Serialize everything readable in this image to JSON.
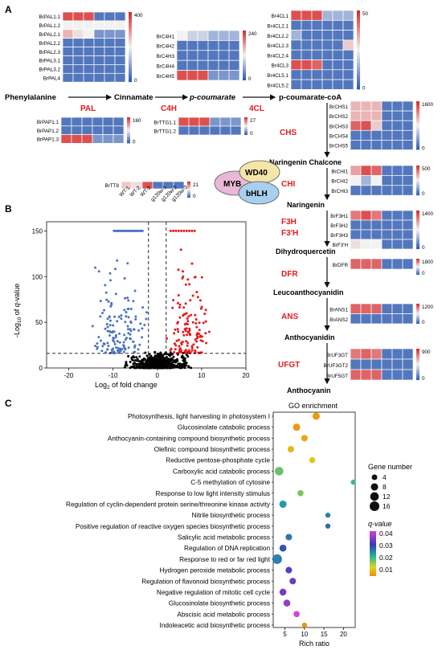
{
  "panels": {
    "a": "A",
    "b": "B",
    "c": "C"
  },
  "colors": {
    "high": "#d62728",
    "mid": "#f2f2f2",
    "low": "#2b58b0",
    "enzyme": "#e31a1c",
    "volcano_up": "#e41a1c",
    "volcano_down": "#4a74c0",
    "volcano_ns": "#000000"
  },
  "pathway": {
    "main_steps": [
      "Phenylalanine",
      "Cinnamate",
      "p-coumarate",
      "p-coumarate-coA"
    ],
    "main_enzymes": [
      "PAL",
      "C4H",
      "4CL"
    ],
    "vertical_steps": [
      "Naringenin Chalcone",
      "Naringenin",
      "Dihydroquercetin",
      "Leucoanthocyanidin",
      "Anthocyanidin",
      "Anthocyanin"
    ],
    "vertical_enzymes": [
      "CHS",
      "CHI",
      "F3H",
      "F3'H",
      "DFR",
      "ANS",
      "UFGT"
    ],
    "mbw": [
      "MYB",
      "WD40",
      "bHLH"
    ],
    "sample_labels": [
      "WT-1",
      "WT-2",
      "WT-3",
      "g120w-1",
      "g120w-2",
      "g120w-3"
    ]
  },
  "heatmaps": [
    {
      "id": "pal",
      "genes": [
        "BrPAL1.1",
        "BrPAL1.2",
        "BrPAL2.1",
        "BrPAL2.2",
        "BrPAL2.3",
        "BrPAL3.1",
        "BrPAL3.2",
        "BrPAL4"
      ],
      "scale_max": "400",
      "scale_min": "0",
      "values": [
        [
          0.9,
          0.9,
          0.9,
          0.1,
          0.1,
          0.1
        ],
        [
          0.5,
          0.5,
          0.5,
          0.5,
          0.5,
          0.5
        ],
        [
          0.65,
          0.55,
          0.5,
          0.2,
          0.2,
          0.2
        ],
        [
          0.1,
          0.1,
          0.1,
          0.1,
          0.1,
          0.1
        ],
        [
          0.1,
          0.1,
          0.1,
          0.1,
          0.1,
          0.1
        ],
        [
          0.1,
          0.1,
          0.1,
          0.1,
          0.1,
          0.1
        ],
        [
          0.1,
          0.1,
          0.1,
          0.1,
          0.1,
          0.1
        ],
        [
          0.1,
          0.1,
          0.1,
          0.1,
          0.1,
          0.1
        ]
      ]
    },
    {
      "id": "c4h",
      "genes": [
        "BrC4H1",
        "BrC4H2",
        "BrC4H3",
        "BrC4H4",
        "BrC4H5"
      ],
      "scale_max": "240",
      "scale_min": "0",
      "values": [
        [
          0.5,
          0.4,
          0.4,
          0.3,
          0.3,
          0.3
        ],
        [
          0.1,
          0.1,
          0.1,
          0.1,
          0.1,
          0.1
        ],
        [
          0.1,
          0.1,
          0.1,
          0.1,
          0.1,
          0.1
        ],
        [
          0.1,
          0.1,
          0.1,
          0.1,
          0.1,
          0.1
        ],
        [
          0.9,
          0.9,
          0.9,
          0.2,
          0.2,
          0.2
        ]
      ]
    },
    {
      "id": "4cl",
      "genes": [
        "Br4CL1",
        "Br4CL2.1",
        "Br4CL2.2",
        "Br4CL2.3",
        "Br4CL2.4",
        "Br4CL3",
        "Br4CL5.1",
        "Br4CL5.2"
      ],
      "scale_max": "50",
      "scale_min": "0",
      "values": [
        [
          0.9,
          0.9,
          0.9,
          0.3,
          0.3,
          0.3
        ],
        [
          0.1,
          0.1,
          0.1,
          0.1,
          0.1,
          0.1
        ],
        [
          0.3,
          0.1,
          0.1,
          0.1,
          0.1,
          0.1
        ],
        [
          0.1,
          0.1,
          0.1,
          0.1,
          0.1,
          0.6
        ],
        [
          0.1,
          0.1,
          0.1,
          0.1,
          0.1,
          0.1
        ],
        [
          0.9,
          0.9,
          0.85,
          0.1,
          0.1,
          0.1
        ],
        [
          0.1,
          0.1,
          0.1,
          0.1,
          0.1,
          0.1
        ],
        [
          0.1,
          0.1,
          0.1,
          0.1,
          0.1,
          0.1
        ]
      ]
    },
    {
      "id": "pap",
      "genes": [
        "BrPAP1.1",
        "BrPAP1.2",
        "BrPAP1.3"
      ],
      "scale_max": "160",
      "scale_min": "0",
      "values": [
        [
          0.1,
          0.1,
          0.1,
          0.1,
          0.1,
          0.1
        ],
        [
          0.1,
          0.1,
          0.1,
          0.1,
          0.1,
          0.1
        ],
        [
          0.9,
          0.9,
          0.9,
          0.2,
          0.2,
          0.2
        ]
      ]
    },
    {
      "id": "ttg1",
      "genes": [
        "BrTTG1.1",
        "BrTTG1.2"
      ],
      "scale_max": "27",
      "scale_min": "0",
      "values": [
        [
          0.9,
          0.9,
          0.9,
          0.2,
          0.2,
          0.2
        ],
        [
          0.1,
          0.1,
          0.1,
          0.1,
          0.1,
          0.1
        ]
      ]
    },
    {
      "id": "tt8",
      "genes": [
        "BrTT8"
      ],
      "scale_max": "21",
      "scale_min": "0",
      "values": [
        [
          0.6,
          0.55,
          0.9,
          0.1,
          0.1,
          0.1
        ]
      ]
    },
    {
      "id": "chs",
      "genes": [
        "BrCHS1",
        "BrCHS2",
        "BrCHS3",
        "BrCHS4",
        "BrCHS5"
      ],
      "scale_max": "1600",
      "scale_min": "0",
      "values": [
        [
          0.65,
          0.65,
          0.65,
          0.1,
          0.1,
          0.1
        ],
        [
          0.65,
          0.65,
          0.65,
          0.1,
          0.1,
          0.1
        ],
        [
          0.85,
          0.9,
          0.6,
          0.1,
          0.1,
          0.1
        ],
        [
          0.1,
          0.1,
          0.1,
          0.1,
          0.1,
          0.1
        ],
        [
          0.1,
          0.1,
          0.1,
          0.1,
          0.1,
          0.1
        ]
      ]
    },
    {
      "id": "chi",
      "genes": [
        "BrCHI1",
        "BrCHI2",
        "BrCHI3"
      ],
      "scale_max": "500",
      "scale_min": "0",
      "values": [
        [
          0.7,
          0.9,
          0.85,
          0.1,
          0.1,
          0.1
        ],
        [
          0.5,
          0.3,
          0.5,
          0.1,
          0.1,
          0.1
        ],
        [
          0.1,
          0.1,
          0.1,
          0.1,
          0.1,
          0.1
        ]
      ]
    },
    {
      "id": "f3h",
      "genes": [
        "BrF3H1",
        "BrF3H2",
        "BrF3H3",
        "BrF3'H"
      ],
      "scale_max": "1400",
      "scale_min": "0",
      "values": [
        [
          0.8,
          0.9,
          0.8,
          0.1,
          0.1,
          0.1
        ],
        [
          0.1,
          0.1,
          0.1,
          0.1,
          0.1,
          0.1
        ],
        [
          0.1,
          0.1,
          0.1,
          0.1,
          0.1,
          0.1
        ],
        [
          0.55,
          0.5,
          0.5,
          0.1,
          0.1,
          0.1
        ]
      ]
    },
    {
      "id": "dfr",
      "genes": [
        "BrDFR"
      ],
      "scale_max": "1800",
      "scale_min": "0",
      "values": [
        [
          0.85,
          0.85,
          0.85,
          0.1,
          0.1,
          0.1
        ]
      ]
    },
    {
      "id": "ans",
      "genes": [
        "BrANS1",
        "BrANS2"
      ],
      "scale_max": "1200",
      "scale_min": "0",
      "values": [
        [
          0.85,
          0.85,
          0.85,
          0.1,
          0.1,
          0.1
        ],
        [
          0.1,
          0.1,
          0.1,
          0.1,
          0.1,
          0.1
        ]
      ]
    },
    {
      "id": "ufgt",
      "genes": [
        "BrUF3GT",
        "BrUF3GT2",
        "BrUF5GT"
      ],
      "scale_max": "900",
      "scale_min": "0",
      "values": [
        [
          0.8,
          0.85,
          0.8,
          0.1,
          0.1,
          0.1
        ],
        [
          0.1,
          0.1,
          0.1,
          0.1,
          0.1,
          0.1
        ],
        [
          0.85,
          0.85,
          0.85,
          0.1,
          0.1,
          0.1
        ]
      ]
    }
  ],
  "chart_data": [
    {
      "type": "scatter",
      "name": "volcano",
      "xlabel": "Log2 of fold change",
      "ylabel": "-Log10 of q-value",
      "xlim": [
        -25,
        20
      ],
      "ylim": [
        0,
        160
      ],
      "xticks": [
        "-20",
        "-10",
        "0",
        "10",
        "20"
      ],
      "yticks": [
        "0",
        "50",
        "100",
        "150"
      ],
      "thresholds": {
        "x": [
          -2,
          2
        ],
        "y": 16
      },
      "groups": [
        "down",
        "up",
        "ns"
      ]
    },
    {
      "type": "scatter",
      "name": "GO enrichment",
      "title": "GO enrichment",
      "xlabel": "Rich ratio",
      "xticks": [
        "5",
        "10",
        "15",
        "20"
      ],
      "xlim": [
        2,
        23
      ],
      "terms": [
        {
          "term": "Photosynthesis, light harvesting in photosystem I",
          "x": 13,
          "size": 8,
          "q": 0.002
        },
        {
          "term": "Glucosinolate catabolic process",
          "x": 8,
          "size": 8,
          "q": 0.002
        },
        {
          "term": "Anthocyanin-containing compound biosynthetic process",
          "x": 10,
          "size": 6,
          "q": 0.004
        },
        {
          "term": "Olefinic compound biosynthetic process",
          "x": 6.5,
          "size": 6,
          "q": 0.006
        },
        {
          "term": "Reductive pentose-phosphate cycle",
          "x": 12,
          "size": 5,
          "q": 0.008
        },
        {
          "term": "Carboxylic acid catabolic process",
          "x": 3.5,
          "size": 12,
          "q": 0.016
        },
        {
          "term": "C-5 methylation of cytosine",
          "x": 22.5,
          "size": 3,
          "q": 0.018
        },
        {
          "term": "Response to low light intensity stimulus",
          "x": 9,
          "size": 5,
          "q": 0.015
        },
        {
          "term": "Regulation of cyclin-dependent protein serine/threonine kinase activity",
          "x": 4.5,
          "size": 8,
          "q": 0.022
        },
        {
          "term": "Nitrile biosynthetic process",
          "x": 16,
          "size": 3,
          "q": 0.024
        },
        {
          "term": "Positive regulation of reactive oxygen species biosynthetic process",
          "x": 16,
          "size": 3,
          "q": 0.026
        },
        {
          "term": "Salicylic acid metabolic process",
          "x": 6,
          "size": 6,
          "q": 0.025
        },
        {
          "term": "Regulation of DNA replication",
          "x": 4.5,
          "size": 7,
          "q": 0.028
        },
        {
          "term": "Response to red or far red light",
          "x": 3,
          "size": 16,
          "q": 0.024
        },
        {
          "term": "Hydrogen peroxide metabolic process",
          "x": 6,
          "size": 6,
          "q": 0.032
        },
        {
          "term": "Regulation of flavonoid biosynthetic process",
          "x": 7,
          "size": 6,
          "q": 0.033
        },
        {
          "term": "Negative regulation of mitotic cell cycle",
          "x": 4.5,
          "size": 7,
          "q": 0.034
        },
        {
          "term": "Glucosinolate biosynthetic process",
          "x": 5.5,
          "size": 7,
          "q": 0.036
        },
        {
          "term": "Abscisic acid metabolic process",
          "x": 8,
          "size": 5,
          "q": 0.04
        },
        {
          "term": "Indoleacetic acid biosynthetic process",
          "x": 10,
          "size": 3,
          "q": 0.001
        }
      ],
      "size_legend": {
        "title": "Gene number",
        "values": [
          "4",
          "8",
          "12",
          "16"
        ]
      },
      "color_legend": {
        "title": "q-value",
        "values": [
          "0.04",
          "0.03",
          "0.02",
          "0.01"
        ]
      }
    }
  ]
}
